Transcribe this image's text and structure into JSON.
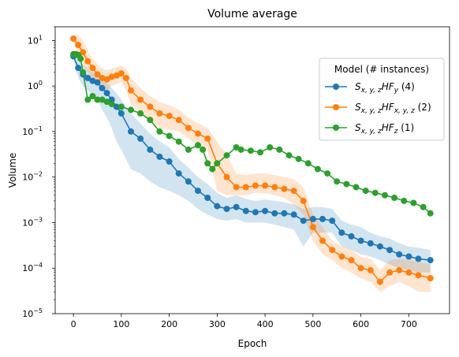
{
  "chart_data": {
    "type": "line",
    "title": "Volume average",
    "xlabel": "Epoch",
    "ylabel": "Volume",
    "xlim": [
      -38,
      785
    ],
    "ylim": [
      1e-05,
      20
    ],
    "yscale": "log",
    "x_ticks": [
      "0",
      "100",
      "200",
      "300",
      "400",
      "500",
      "600",
      "700"
    ],
    "y_ticks": [
      {
        "base": "10",
        "exp": "1"
      },
      {
        "base": "10",
        "exp": "0"
      },
      {
        "base": "10",
        "exp": "−1"
      },
      {
        "base": "10",
        "exp": "−2"
      },
      {
        "base": "10",
        "exp": "−3"
      },
      {
        "base": "10",
        "exp": "−4"
      },
      {
        "base": "10",
        "exp": "−5"
      }
    ],
    "legend": {
      "title": "Model (# instances)",
      "position": "right"
    },
    "series": [
      {
        "name_base": "S",
        "name_sub": "x, y, z",
        "name_mid": "HF",
        "name_sub2": "y",
        "name_count": "(4)",
        "color": "#1f77b4",
        "x": [
          0,
          10,
          20,
          30,
          40,
          50,
          60,
          70,
          80,
          90,
          100,
          120,
          140,
          160,
          180,
          200,
          220,
          240,
          260,
          280,
          300,
          320,
          340,
          360,
          380,
          400,
          420,
          440,
          460,
          480,
          500,
          520,
          540,
          560,
          580,
          600,
          620,
          640,
          660,
          680,
          700,
          720,
          745
        ],
        "y": [
          4.5,
          2.5,
          1.8,
          1.5,
          1.3,
          1.2,
          0.9,
          0.7,
          0.5,
          0.35,
          0.25,
          0.1,
          0.07,
          0.04,
          0.028,
          0.022,
          0.012,
          0.008,
          0.005,
          0.0035,
          0.0023,
          0.002,
          0.0022,
          0.0018,
          0.0017,
          0.0018,
          0.0016,
          0.0016,
          0.0015,
          0.0011,
          0.0012,
          0.0012,
          0.0011,
          0.0006,
          0.0005,
          0.0004,
          0.00035,
          0.0003,
          0.00025,
          0.0002,
          0.00018,
          0.00016,
          0.00015
        ],
        "lower": [
          3.8,
          1.5,
          1.0,
          0.8,
          0.6,
          0.5,
          0.3,
          0.2,
          0.12,
          0.06,
          0.04,
          0.015,
          0.012,
          0.008,
          0.006,
          0.005,
          0.004,
          0.003,
          0.002,
          0.0015,
          0.0012,
          0.0011,
          0.0012,
          0.001,
          0.001,
          0.001,
          0.0009,
          0.0008,
          0.0007,
          0.0003,
          0.0006,
          0.0006,
          0.0006,
          0.0003,
          0.00025,
          0.0002,
          0.00018,
          0.00015,
          0.00012,
          0.0001,
          9e-05,
          8e-05,
          8e-05
        ],
        "upper": [
          5.5,
          4.0,
          3.0,
          2.4,
          2.0,
          1.9,
          1.5,
          1.2,
          0.9,
          0.7,
          0.5,
          0.25,
          0.15,
          0.09,
          0.06,
          0.045,
          0.025,
          0.016,
          0.01,
          0.007,
          0.0045,
          0.0035,
          0.004,
          0.0033,
          0.003,
          0.0032,
          0.003,
          0.0028,
          0.0025,
          0.002,
          0.0022,
          0.0022,
          0.002,
          0.0011,
          0.0009,
          0.0008,
          0.0006,
          0.0005,
          0.00045,
          0.00035,
          0.0003,
          0.00028,
          0.00025
        ]
      },
      {
        "name_base": "S",
        "name_sub": "x, y, z",
        "name_mid": "HF",
        "name_sub2": "x, y, z",
        "name_count": "(2)",
        "color": "#ff7f0e",
        "x": [
          0,
          10,
          20,
          30,
          40,
          50,
          60,
          70,
          80,
          90,
          100,
          110,
          120,
          140,
          160,
          180,
          200,
          220,
          240,
          260,
          280,
          300,
          320,
          340,
          360,
          380,
          400,
          420,
          440,
          460,
          480,
          500,
          520,
          540,
          560,
          580,
          600,
          620,
          640,
          660,
          680,
          700,
          720,
          745
        ],
        "y": [
          11,
          8,
          5.5,
          3.5,
          2.5,
          1.8,
          1.5,
          1.4,
          1.6,
          1.7,
          1.9,
          1.5,
          0.8,
          0.5,
          0.35,
          0.25,
          0.22,
          0.18,
          0.12,
          0.09,
          0.07,
          0.02,
          0.01,
          0.006,
          0.006,
          0.0065,
          0.0065,
          0.006,
          0.0055,
          0.005,
          0.003,
          0.0008,
          0.0004,
          0.00025,
          0.00018,
          0.00015,
          0.0001,
          9e-05,
          5e-05,
          8e-05,
          9e-05,
          8e-05,
          7e-05,
          6e-05
        ],
        "lower": [
          9,
          5,
          3,
          2,
          1.5,
          1.0,
          0.8,
          0.8,
          1.0,
          1.1,
          1.2,
          0.8,
          0.4,
          0.25,
          0.18,
          0.12,
          0.11,
          0.1,
          0.07,
          0.05,
          0.04,
          0.005,
          0.004,
          0.004,
          0.004,
          0.0045,
          0.0045,
          0.004,
          0.0035,
          0.0025,
          0.0015,
          0.0004,
          0.0002,
          0.00015,
          0.0001,
          8e-05,
          6e-05,
          5e-05,
          3e-05,
          4e-05,
          5e-05,
          4e-05,
          3e-05,
          3e-05
        ],
        "upper": [
          13,
          13,
          10,
          6,
          4,
          3,
          2.5,
          2.2,
          2.4,
          2.6,
          2.8,
          2.4,
          1.5,
          0.9,
          0.6,
          0.45,
          0.38,
          0.3,
          0.2,
          0.15,
          0.12,
          0.06,
          0.03,
          0.012,
          0.011,
          0.012,
          0.012,
          0.011,
          0.01,
          0.009,
          0.006,
          0.0015,
          0.0008,
          0.0004,
          0.0003,
          0.00025,
          0.00018,
          0.00016,
          9e-05,
          0.00015,
          0.00016,
          0.00015,
          0.00014,
          0.00012
        ]
      },
      {
        "name_base": "S",
        "name_sub": "x, y, z",
        "name_mid": "HF",
        "name_sub2": "z",
        "name_count": "(1)",
        "color": "#2ca02c",
        "x": [
          0,
          5,
          10,
          15,
          20,
          30,
          40,
          50,
          60,
          70,
          80,
          100,
          120,
          140,
          160,
          180,
          200,
          220,
          240,
          260,
          270,
          280,
          290,
          300,
          320,
          340,
          350,
          370,
          390,
          410,
          430,
          450,
          470,
          490,
          510,
          530,
          550,
          570,
          590,
          610,
          630,
          650,
          670,
          690,
          710,
          730,
          745
        ],
        "y": [
          5,
          5,
          4.8,
          4,
          2,
          0.5,
          0.6,
          0.5,
          0.5,
          0.45,
          0.4,
          0.35,
          0.3,
          0.25,
          0.18,
          0.1,
          0.08,
          0.06,
          0.04,
          0.05,
          0.04,
          0.02,
          0.015,
          0.02,
          0.03,
          0.045,
          0.04,
          0.038,
          0.035,
          0.045,
          0.04,
          0.03,
          0.025,
          0.02,
          0.015,
          0.012,
          0.008,
          0.007,
          0.006,
          0.005,
          0.0045,
          0.004,
          0.0035,
          0.003,
          0.0027,
          0.0022,
          0.0016
        ]
      }
    ]
  }
}
